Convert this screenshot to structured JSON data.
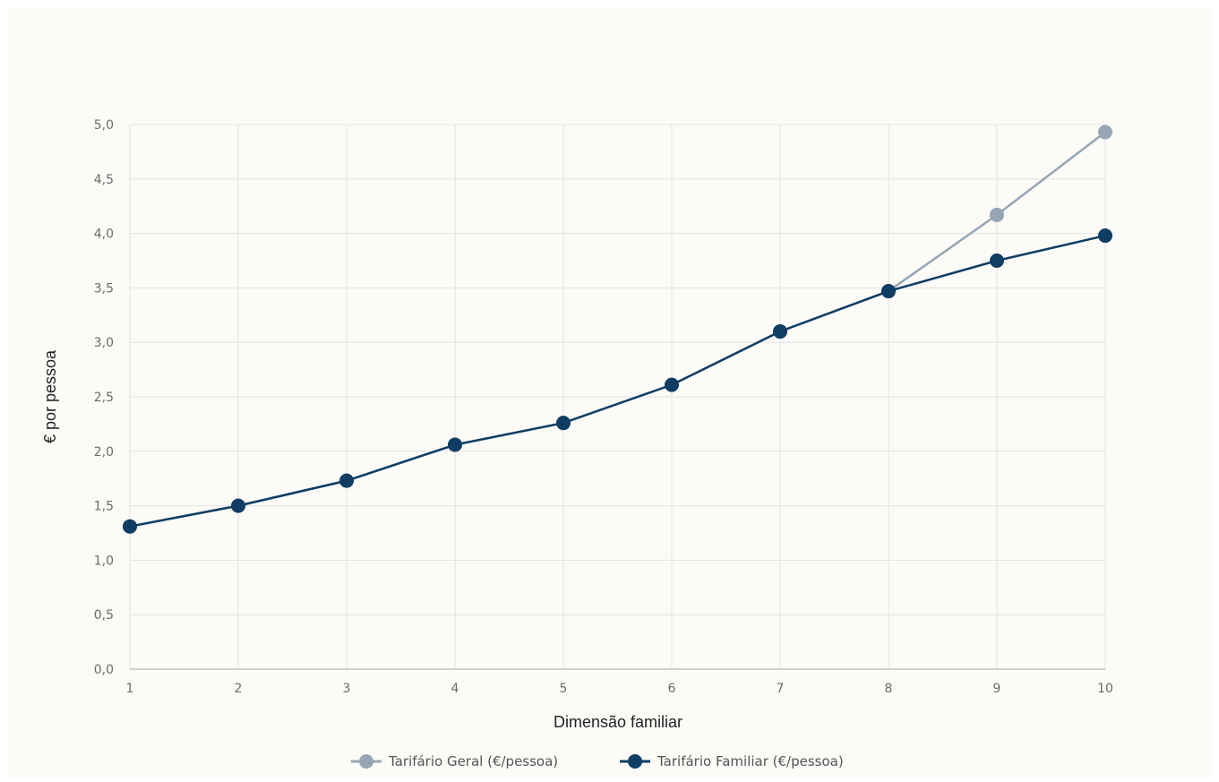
{
  "chart_data": {
    "type": "line",
    "xlabel": "Dimensão familiar",
    "ylabel": "€ por pessoa",
    "x": [
      1,
      2,
      3,
      4,
      5,
      6,
      7,
      8,
      9,
      10
    ],
    "x_tick_labels": [
      "1",
      "2",
      "3",
      "4",
      "5",
      "6",
      "7",
      "8",
      "9",
      "10"
    ],
    "ylim": [
      0,
      5
    ],
    "y_ticks": [
      0,
      0.5,
      1,
      1.5,
      2,
      2.5,
      3,
      3.5,
      4,
      4.5,
      5
    ],
    "y_tick_labels": [
      "0,0",
      "0,5",
      "1,0",
      "1,5",
      "2,0",
      "2,5",
      "3,0",
      "3,5",
      "4,0",
      "4,5",
      "5,0"
    ],
    "grid": true,
    "legend_position": "bottom-center",
    "series": [
      {
        "name": "Tarifário Geral (€/pessoa)",
        "color": "#97a6b4",
        "values": [
          1.31,
          1.5,
          1.73,
          2.06,
          2.26,
          2.61,
          3.1,
          3.47,
          4.17,
          4.93
        ]
      },
      {
        "name": "Tarifário Familiar (€/pessoa)",
        "color": "#0f3d63",
        "values": [
          1.31,
          1.5,
          1.73,
          2.06,
          2.26,
          2.61,
          3.1,
          3.47,
          3.75,
          3.98
        ]
      }
    ]
  }
}
